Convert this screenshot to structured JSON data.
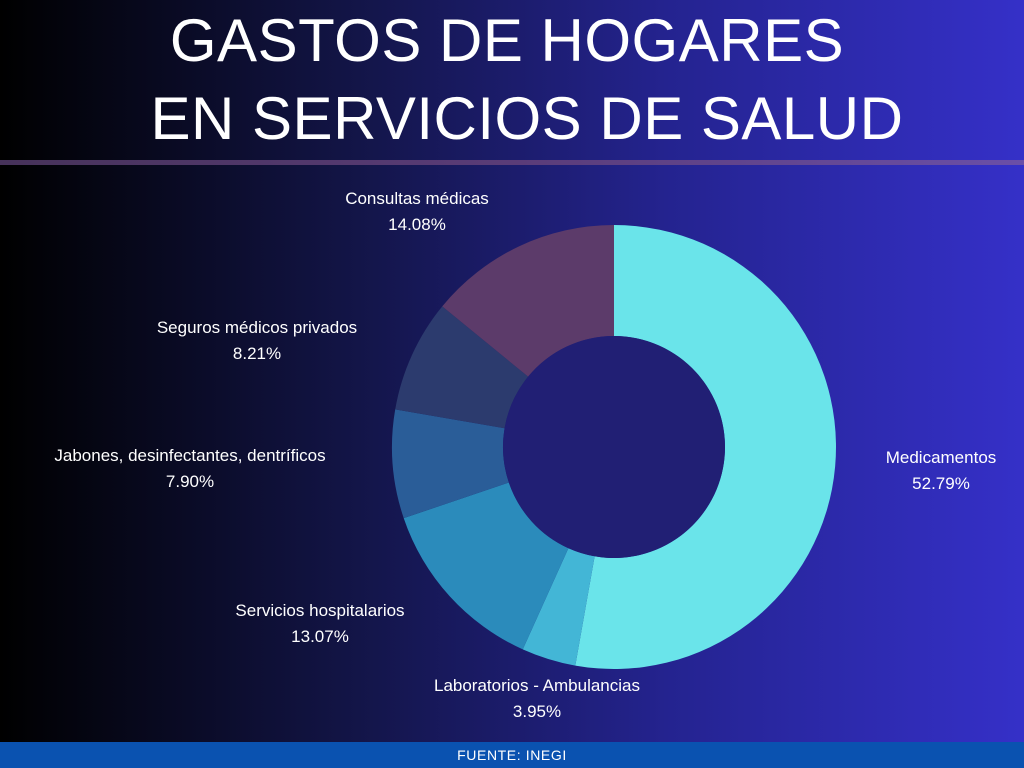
{
  "title": {
    "line1": "GASTOS DE HOGARES",
    "line2": "EN SERVICIOS DE SALUD"
  },
  "chart_data": {
    "type": "pie",
    "title": "GASTOS DE HOGARES EN SERVICIOS DE SALUD",
    "donut": true,
    "legend": "none",
    "categories": [
      "Medicamentos",
      "Laboratorios - Ambulancias",
      "Servicios hospitalarios",
      "Jabones, desinfectantes, dentríficos",
      "Seguros médicos privados",
      "Consultas médicas"
    ],
    "values": [
      52.79,
      3.95,
      13.07,
      7.9,
      8.21,
      14.08
    ],
    "value_labels": [
      "52.79%",
      "3.95%",
      "13.07%",
      "7.90%",
      "8.21%",
      "14.08%"
    ],
    "colors": [
      "#6ae4ea",
      "#43b6d6",
      "#2b8bbb",
      "#2a5d98",
      "#2c3b6e",
      "#5c3b6a"
    ]
  },
  "footer": {
    "source": "FUENTE: INEGI"
  }
}
